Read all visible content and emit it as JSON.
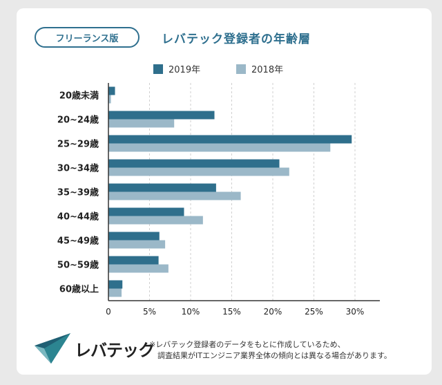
{
  "header": {
    "badge_label": "フリーランス版",
    "title": "レバテック登録者の年齢層"
  },
  "brand": {
    "logo_text": "レバテック",
    "accent_color": "#2e6f8e"
  },
  "footer": {
    "note_line1": "※レバテック登録者のデータをもとに作成しているため、",
    "note_line2": "調査結果がITエンジニア業界全体の傾向とは異なる場合があります。"
  },
  "chart_data": {
    "type": "bar",
    "orientation": "horizontal",
    "title": "",
    "categories": [
      "20歳未満",
      "20~24歳",
      "25~29歳",
      "30~34歳",
      "35~39歳",
      "40~44歳",
      "45~49歳",
      "50~59歳",
      "60歳以上"
    ],
    "series": [
      {
        "name": "2019年",
        "color": "#2f6f8c",
        "values": [
          0.8,
          12.9,
          29.6,
          20.8,
          13.1,
          9.2,
          6.2,
          6.1,
          1.7
        ]
      },
      {
        "name": "2018年",
        "color": "#9bb8c8",
        "values": [
          0.3,
          8.0,
          27.0,
          22.0,
          16.1,
          11.5,
          6.9,
          7.3,
          1.6
        ]
      }
    ],
    "xlim": [
      0,
      33
    ],
    "x_ticks": [
      0,
      5,
      10,
      15,
      20,
      25,
      30
    ],
    "x_tick_labels": [
      "0",
      "5%",
      "10%",
      "15%",
      "20%",
      "25%",
      "30%"
    ],
    "grid": "vertical-dashed",
    "legend_position": "top-center"
  }
}
